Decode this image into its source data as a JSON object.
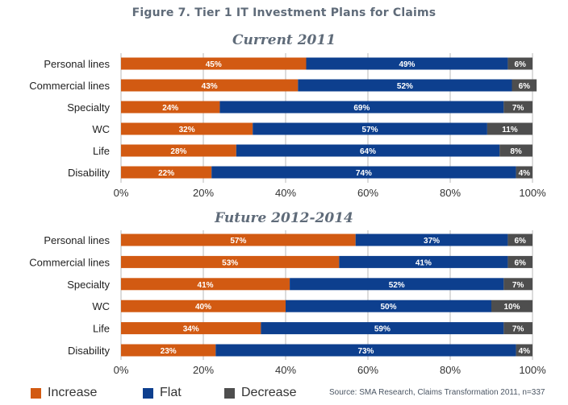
{
  "figure_title": "Figure 7. Tier 1 IT Investment Plans for Claims",
  "source_note": "Source: SMA Research, Claims Transformation 2011, n=337",
  "legend": {
    "increase": "Increase",
    "flat": "Flat",
    "decrease": "Decrease"
  },
  "colors": {
    "increase": "#d25a12",
    "flat": "#0d3f8e",
    "decrease": "#4e4e4e",
    "gridline": "#b8b8b8",
    "title": "#5f6b79"
  },
  "chart_data": [
    {
      "type": "bar",
      "orientation": "horizontal",
      "stacked": true,
      "title": "Current 2011",
      "categories": [
        "Personal lines",
        "Commercial lines",
        "Specialty",
        "WC",
        "Life",
        "Disability"
      ],
      "series": [
        {
          "name": "Increase",
          "values": [
            45,
            43,
            24,
            32,
            28,
            22
          ]
        },
        {
          "name": "Flat",
          "values": [
            49,
            52,
            69,
            57,
            64,
            74
          ]
        },
        {
          "name": "Decrease",
          "values": [
            6,
            6,
            7,
            11,
            8,
            4
          ]
        }
      ],
      "xlim": [
        0,
        100
      ],
      "xticks": [
        "0%",
        "20%",
        "40%",
        "60%",
        "80%",
        "100%"
      ],
      "grid": true
    },
    {
      "type": "bar",
      "orientation": "horizontal",
      "stacked": true,
      "title": "Future 2012-2014",
      "categories": [
        "Personal lines",
        "Commercial lines",
        "Specialty",
        "WC",
        "Life",
        "Disability"
      ],
      "series": [
        {
          "name": "Increase",
          "values": [
            57,
            53,
            41,
            40,
            34,
            23
          ]
        },
        {
          "name": "Flat",
          "values": [
            37,
            41,
            52,
            50,
            59,
            73
          ]
        },
        {
          "name": "Decrease",
          "values": [
            6,
            6,
            7,
            10,
            7,
            4
          ]
        }
      ],
      "xlim": [
        0,
        100
      ],
      "xticks": [
        "0%",
        "20%",
        "40%",
        "60%",
        "80%",
        "100%"
      ],
      "grid": true
    }
  ]
}
